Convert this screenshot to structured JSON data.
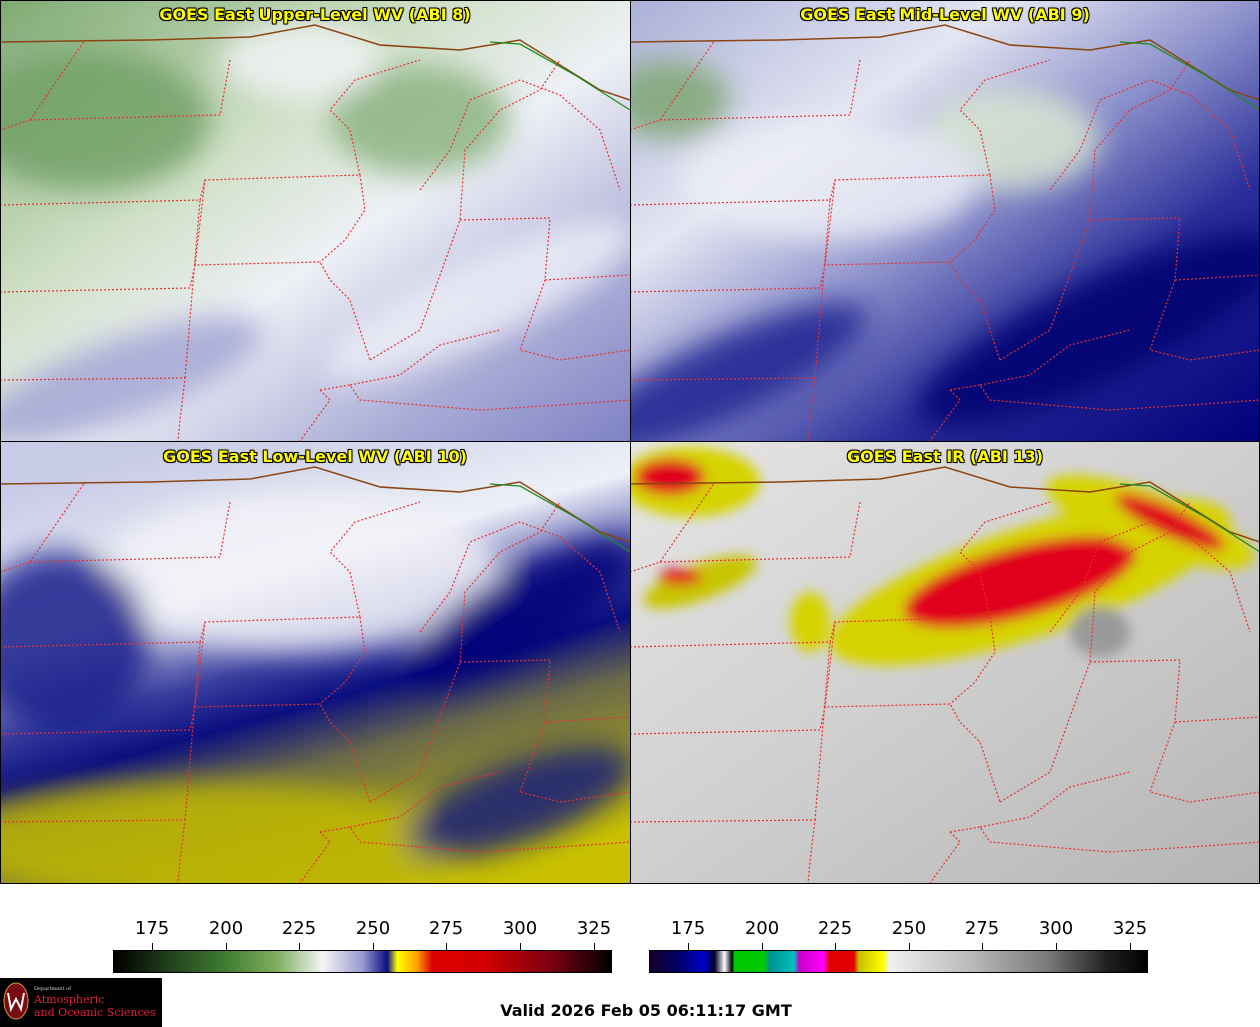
{
  "panels": [
    {
      "title": "GOES East Upper-Level WV (ABI 8)",
      "palette": "upper"
    },
    {
      "title": "GOES East Mid-Level WV (ABI 9)",
      "palette": "mid"
    },
    {
      "title": "GOES East Low-Level WV (ABI 10)",
      "palette": "low"
    },
    {
      "title": "GOES East IR (ABI 13)",
      "palette": "ir"
    }
  ],
  "colorbars": [
    {
      "name": "wv",
      "ticks": [
        "175",
        "200",
        "225",
        "250",
        "275",
        "300",
        "325"
      ]
    },
    {
      "name": "ir",
      "ticks": [
        "175",
        "200",
        "225",
        "250",
        "275",
        "300",
        "325"
      ]
    }
  ],
  "colors": {
    "title_text": "#ffff00",
    "state_borders": "#e83030",
    "national_border": "#8b4513",
    "province_border": "#1e8c1e",
    "wv_dry_yellow": "#c8c000",
    "wv_moist_white": "#f4f4f8",
    "wv_blue": "#000080",
    "wv_green": "#6fa36f",
    "ir_red": "#e0001a",
    "ir_yellow": "#e0dd00"
  },
  "logo": {
    "dept": "Department of",
    "line1": "Atmospheric",
    "line2": "and Oceanic Sciences"
  },
  "valid_text": "Valid 2026 Feb 05 06:11:17 GMT"
}
